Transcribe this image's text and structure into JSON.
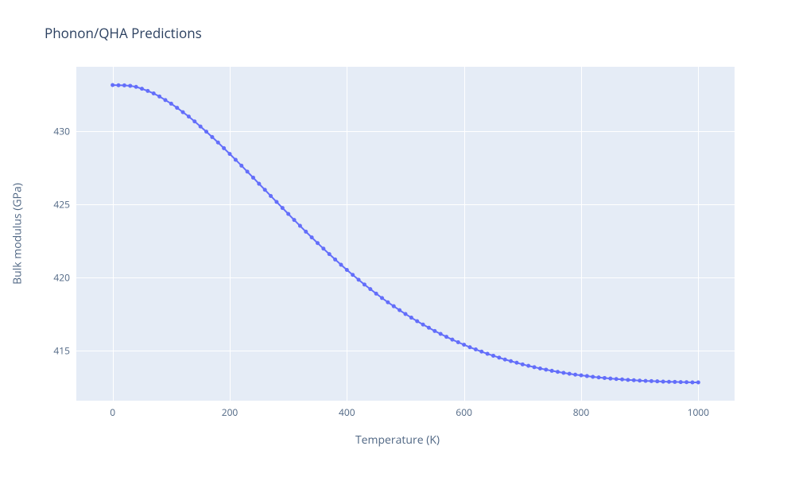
{
  "chart": {
    "type": "line",
    "title": "Phonon/QHA Predictions",
    "xlabel": "Temperature (K)",
    "ylabel": "Bulk modulus (GPa)",
    "background_color": "#ffffff",
    "plot_background_color": "#e5ecf6",
    "grid_color": "#ffffff",
    "title_color": "#2a3f5f",
    "axis_label_color": "#506784",
    "tick_color": "#506784",
    "title_fontsize": 17,
    "axis_label_fontsize": 14,
    "tick_fontsize": 12,
    "line_color": "#636efa",
    "marker_color": "#636efa",
    "marker_size": 5,
    "line_width": 2,
    "xlim": [
      -62,
      1062
    ],
    "ylim": [
      411.6,
      434.4
    ],
    "xticks": [
      0,
      200,
      400,
      600,
      800,
      1000
    ],
    "yticks": [
      415,
      420,
      425,
      430
    ],
    "x": [
      0,
      10,
      20,
      30,
      40,
      50,
      60,
      70,
      80,
      90,
      100,
      110,
      120,
      130,
      140,
      150,
      160,
      170,
      180,
      190,
      200,
      210,
      220,
      230,
      240,
      250,
      260,
      270,
      280,
      290,
      300,
      310,
      320,
      330,
      340,
      350,
      360,
      370,
      380,
      390,
      400,
      410,
      420,
      430,
      440,
      450,
      460,
      470,
      480,
      490,
      500,
      510,
      520,
      530,
      540,
      550,
      560,
      570,
      580,
      590,
      600,
      610,
      620,
      630,
      640,
      650,
      660,
      670,
      680,
      690,
      700,
      710,
      720,
      730,
      740,
      750,
      760,
      770,
      780,
      790,
      800,
      810,
      820,
      830,
      840,
      850,
      860,
      870,
      880,
      890,
      900,
      910,
      920,
      930,
      940,
      950,
      960,
      970,
      980,
      990,
      1000
    ],
    "y": [
      433.15,
      433.14,
      433.13,
      433.1,
      433.03,
      432.9,
      432.75,
      432.58,
      432.37,
      432.13,
      431.88,
      431.6,
      431.3,
      431.0,
      430.67,
      430.32,
      429.97,
      429.6,
      429.23,
      428.84,
      428.45,
      428.05,
      427.65,
      427.24,
      426.83,
      426.41,
      426.0,
      425.58,
      425.17,
      424.76,
      424.35,
      423.94,
      423.54,
      423.14,
      422.75,
      422.36,
      421.98,
      421.61,
      421.24,
      420.88,
      420.53,
      420.19,
      419.86,
      419.53,
      419.22,
      418.91,
      418.61,
      418.32,
      418.05,
      417.78,
      417.52,
      417.27,
      417.03,
      416.8,
      416.58,
      416.36,
      416.16,
      415.96,
      415.77,
      415.59,
      415.42,
      415.25,
      415.1,
      414.95,
      414.8,
      414.67,
      414.54,
      414.41,
      414.3,
      414.19,
      414.08,
      413.98,
      413.89,
      413.8,
      413.72,
      413.64,
      413.57,
      413.5,
      413.44,
      413.38,
      413.33,
      413.28,
      413.23,
      413.19,
      413.15,
      413.11,
      413.08,
      413.05,
      413.02,
      413.0,
      412.97,
      412.95,
      412.94,
      412.92,
      412.9,
      412.89,
      412.88,
      412.87,
      412.86,
      412.85,
      412.85
    ]
  }
}
